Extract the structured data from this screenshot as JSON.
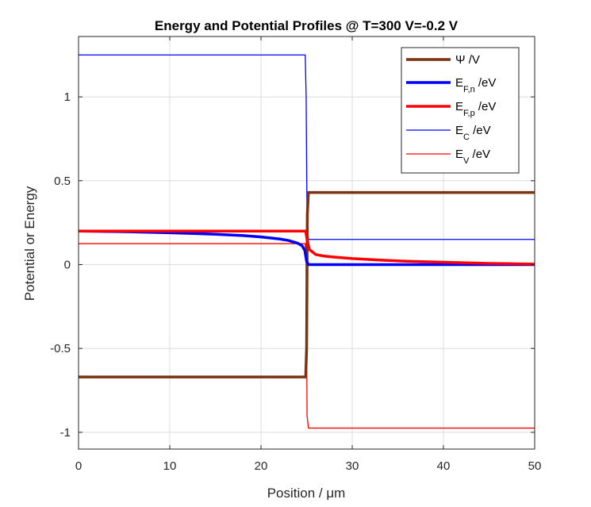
{
  "chart_data": {
    "type": "line",
    "title": "Energy and Potential Profiles @ T=300 V=-0.2 V",
    "xlabel": "Position / μm",
    "ylabel": "Potential or Energy",
    "xlim": [
      0,
      50
    ],
    "ylim": [
      -1.1,
      1.36
    ],
    "grid": true,
    "legend_position": "top-right",
    "x_ticks": [
      0,
      10,
      20,
      30,
      40,
      50
    ],
    "x_tick_labels": [
      "0",
      "10",
      "20",
      "30",
      "40",
      "50"
    ],
    "y_ticks": [
      -1,
      -0.5,
      0,
      0.5,
      1
    ],
    "y_tick_labels": [
      "-1",
      "-0.5",
      "0",
      "0.5",
      "1"
    ],
    "series": [
      {
        "name": "Ψ /V",
        "legend": {
          "main": "Ψ /V",
          "sub": "",
          "tail": ""
        },
        "color": "#7a3210",
        "width": 3.5,
        "x": [
          0,
          24.9,
          25.0,
          25.08,
          25.2,
          50
        ],
        "y": [
          -0.67,
          -0.67,
          -0.5,
          0.3,
          0.43,
          0.43
        ]
      },
      {
        "name": "E_F,n /eV",
        "legend": {
          "main": "E",
          "sub": "F,n",
          "tail": " /eV"
        },
        "color": "#0000ff",
        "width": 3.5,
        "x": [
          0,
          5,
          10,
          15,
          18,
          20,
          22,
          23,
          24,
          24.5,
          24.8,
          25.0,
          25.2,
          50
        ],
        "y": [
          0.2,
          0.196,
          0.19,
          0.181,
          0.173,
          0.165,
          0.153,
          0.144,
          0.128,
          0.113,
          0.085,
          0.02,
          0.0,
          0.0
        ]
      },
      {
        "name": "E_F,p /eV",
        "legend": {
          "main": "E",
          "sub": "F,p",
          "tail": " /eV"
        },
        "color": "#ff0000",
        "width": 3.5,
        "x": [
          0,
          24.9,
          25.05,
          25.3,
          26,
          27,
          28,
          30,
          33,
          36,
          40,
          45,
          50
        ],
        "y": [
          0.2,
          0.2,
          0.15,
          0.09,
          0.06,
          0.05,
          0.045,
          0.036,
          0.027,
          0.02,
          0.014,
          0.007,
          0.003
        ]
      },
      {
        "name": "E_C /eV",
        "legend": {
          "main": "E",
          "sub": "C",
          "tail": " /eV"
        },
        "color": "#0000ff",
        "width": 1.3,
        "x": [
          0,
          24.85,
          24.95,
          25.05,
          25.2,
          50
        ],
        "y": [
          1.25,
          1.25,
          1.0,
          0.25,
          0.15,
          0.15
        ]
      },
      {
        "name": "E_V /eV",
        "legend": {
          "main": "E",
          "sub": "V",
          "tail": " /eV"
        },
        "color": "#ff0000",
        "width": 1.3,
        "x": [
          0,
          24.85,
          24.95,
          25.05,
          25.2,
          50
        ],
        "y": [
          0.125,
          0.125,
          0.0,
          -0.9,
          -0.975,
          -0.975
        ]
      }
    ]
  }
}
